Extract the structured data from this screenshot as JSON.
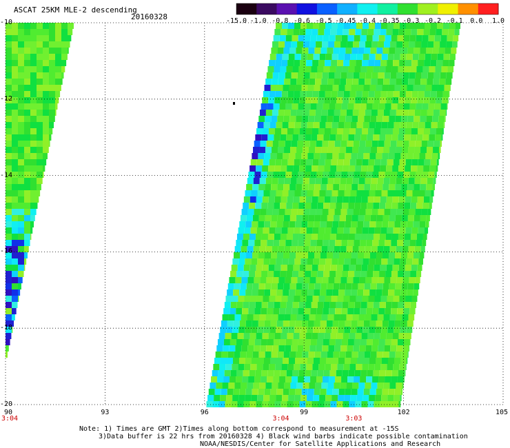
{
  "header": {
    "title": "ASCAT 25KM MLE-2 descending",
    "date": "20160328"
  },
  "colorbar": {
    "tick_labels": [
      "-15.0",
      "-1.0",
      "-0.8",
      "-0.6",
      "-0.5",
      "-0.45",
      "-0.4",
      "-0.35",
      "-0.3",
      "-0.2",
      "-0.1",
      "0.0",
      "1.0"
    ],
    "colors": [
      "#1a0010",
      "#3a0a60",
      "#5a10b0",
      "#1010e0",
      "#0a60ff",
      "#10b0ff",
      "#10f0f0",
      "#10f0a0",
      "#30e030",
      "#a0f020",
      "#f0f000",
      "#ff9000",
      "#ff2020"
    ]
  },
  "map": {
    "y_tick_labels": [
      "-10",
      "-12",
      "-14",
      "-16",
      "-18",
      "-20"
    ],
    "x_tick_labels": [
      "90",
      "93",
      "96",
      "99",
      "102",
      "105"
    ],
    "time_labels": [
      {
        "text": "3:04",
        "lon": 90
      },
      {
        "text": "3:04",
        "lon": 98.3
      },
      {
        "text": "3:03",
        "lon": 100.5
      }
    ]
  },
  "notes": {
    "line1": "Note: 1) Times are GMT 2)Times along bottom correspond to measurement at -15S",
    "line2": "3)Data buffer is 22 hrs from 20160328 4) Black wind barbs indicate possible contamination",
    "line3": "NOAA/NESDIS/Center for Satellite Applications and Research"
  }
}
